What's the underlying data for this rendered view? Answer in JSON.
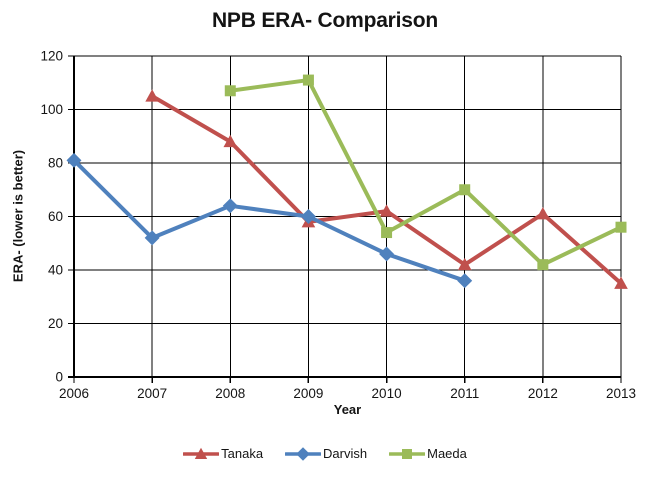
{
  "title": "NPB ERA- Comparison",
  "chart_data": {
    "type": "line",
    "title": "NPB ERA- Comparison",
    "xlabel": "Year",
    "ylabel": "ERA- (lower is better)",
    "x": [
      2006,
      2007,
      2008,
      2009,
      2010,
      2011,
      2012,
      2013
    ],
    "ylim": [
      0,
      120
    ],
    "yticks": [
      0,
      20,
      40,
      60,
      80,
      100,
      120
    ],
    "grid": true,
    "gridline_color": "#000000",
    "legend_position": "bottom",
    "series": [
      {
        "name": "Tanaka",
        "color": "#C0504D",
        "marker": "triangle",
        "values": [
          null,
          105,
          88,
          58,
          62,
          42,
          61,
          35
        ]
      },
      {
        "name": "Darvish",
        "color": "#4F81BD",
        "marker": "diamond",
        "values": [
          81,
          52,
          64,
          60,
          46,
          36,
          null,
          null
        ]
      },
      {
        "name": "Maeda",
        "color": "#9BBB59",
        "marker": "square",
        "values": [
          null,
          null,
          107,
          111,
          54,
          70,
          42,
          56
        ]
      }
    ]
  }
}
